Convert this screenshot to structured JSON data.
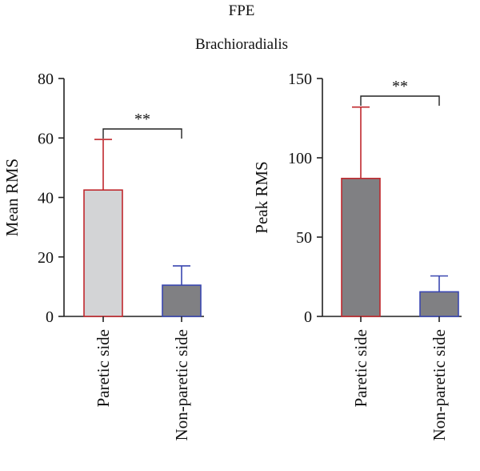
{
  "figure": {
    "title": "FPE",
    "subtitle": "Brachioradialis"
  },
  "chart_data": [
    {
      "type": "bar",
      "ylabel": "Mean RMS",
      "xlabel": "",
      "ylim": [
        0,
        80
      ],
      "yticks": [
        0,
        20,
        40,
        60,
        80
      ],
      "categories": [
        "Paretic side",
        "Non-paretic side"
      ],
      "values": [
        42.5,
        10.5
      ],
      "errors": [
        17,
        6.5
      ],
      "bar_fill": [
        "#d3d4d6",
        "#808083"
      ],
      "bar_edge": [
        "#c0282d",
        "#3a47b0"
      ],
      "significance": "**",
      "grid": false
    },
    {
      "type": "bar",
      "ylabel": "Peak RMS",
      "xlabel": "",
      "ylim": [
        0,
        150
      ],
      "yticks": [
        0,
        50,
        100,
        150
      ],
      "categories": [
        "Paretic side",
        "Non-paretic side"
      ],
      "values": [
        87,
        15.5
      ],
      "errors": [
        45,
        10
      ],
      "bar_fill": [
        "#808083",
        "#808083"
      ],
      "bar_edge": [
        "#c0282d",
        "#3a47b0"
      ],
      "significance": "**",
      "grid": false
    }
  ]
}
